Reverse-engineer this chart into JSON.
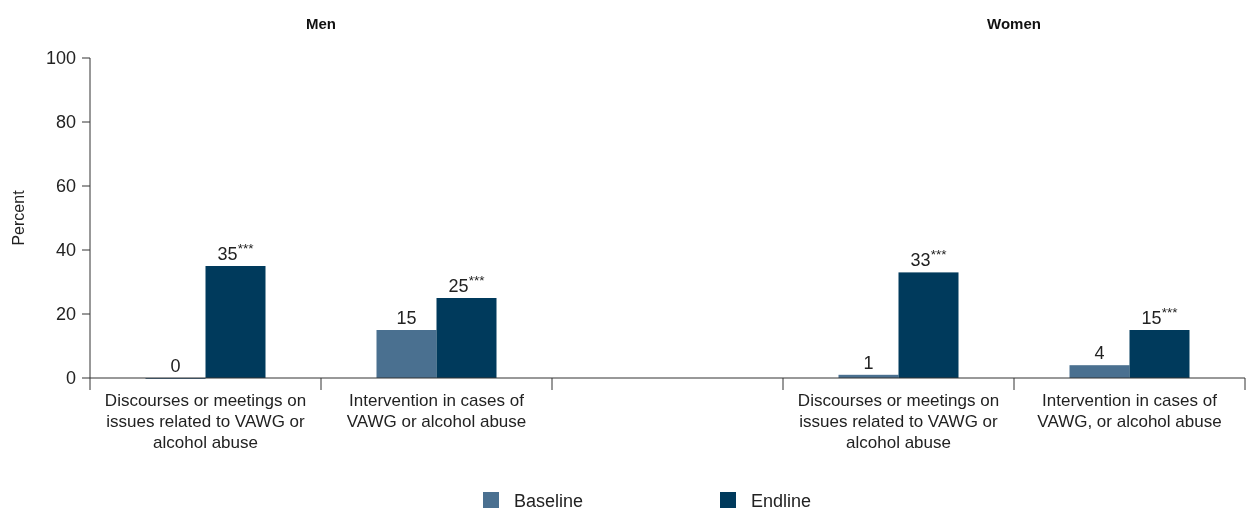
{
  "chart_data": {
    "type": "bar",
    "ylabel": "Percent",
    "annotations": [
      "Men",
      "Women"
    ],
    "categories": [
      "Discourses or meetings on issues related to VAWG or alcohol abuse",
      "Intervention in cases of VAWG or alcohol abuse",
      null,
      "Discourses or meetings on issues related to VAWG or alcohol abuse",
      "Intervention in cases of VAWG, or alcohol abuse"
    ],
    "series": [
      {
        "name": "Baseline",
        "color": "#4a7090",
        "values": [
          0,
          15,
          null,
          1,
          4
        ],
        "value_labels": [
          "0",
          "15",
          null,
          "1",
          "4"
        ]
      },
      {
        "name": "Endline",
        "color": "#003a5c",
        "values": [
          35,
          25,
          null,
          33,
          15
        ],
        "value_labels": [
          "35$^{***}$",
          "25$^{***}$",
          null,
          "33$^{***}$",
          "15$^{***}$"
        ]
      }
    ],
    "ylim": [
      0,
      100
    ],
    "yticks": [
      0,
      20,
      40,
      60,
      80,
      100
    ],
    "legend": "bottom"
  }
}
